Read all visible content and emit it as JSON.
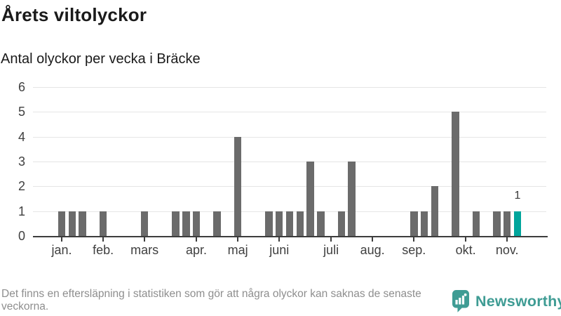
{
  "header": {
    "title": "Årets viltolyckor",
    "subtitle": "Antal olyckor per vecka i Bräcke"
  },
  "chart_data": {
    "type": "bar",
    "title": "Årets viltolyckor",
    "subtitle": "Antal olyckor per vecka i Bräcke",
    "x_unit": "vecka",
    "weeks_start": 1,
    "weeks_end": 45,
    "values": [
      1,
      1,
      1,
      0,
      1,
      0,
      0,
      0,
      1,
      0,
      0,
      1,
      1,
      1,
      0,
      1,
      0,
      4,
      0,
      0,
      1,
      1,
      1,
      1,
      3,
      1,
      0,
      1,
      3,
      0,
      0,
      0,
      0,
      0,
      1,
      1,
      2,
      0,
      5,
      0,
      1,
      0,
      1,
      1,
      1
    ],
    "highlight_week": 45,
    "highlight_value_label": "1",
    "ylim": [
      0,
      6
    ],
    "yticks": [
      0,
      1,
      2,
      3,
      4,
      5,
      6
    ],
    "grid": true,
    "legend": "none",
    "month_ticks": [
      {
        "week": 1,
        "label": "jan."
      },
      {
        "week": 5,
        "label": "feb."
      },
      {
        "week": 9,
        "label": "mars"
      },
      {
        "week": 14,
        "label": "apr."
      },
      {
        "week": 18,
        "label": "maj"
      },
      {
        "week": 22,
        "label": "juni"
      },
      {
        "week": 27,
        "label": "juli"
      },
      {
        "week": 31,
        "label": "aug."
      },
      {
        "week": 35,
        "label": "sep."
      },
      {
        "week": 40,
        "label": "okt."
      },
      {
        "week": 44,
        "label": "nov."
      }
    ],
    "bar_color": "#6b6b6b",
    "highlight_color": "#00a59c"
  },
  "footer": {
    "disclaimer": "Det finns en eftersläpning i statistiken som gör att några olyckor kan saknas de senaste veckorna.",
    "brand": "Newsworthy"
  },
  "colors": {
    "accent_teal": "#00a59c",
    "logo_teal": "#3f9c94",
    "bar_gray": "#6b6b6b",
    "grid_gray": "#e5e5e5",
    "axis_dark": "#3d3d3d"
  }
}
